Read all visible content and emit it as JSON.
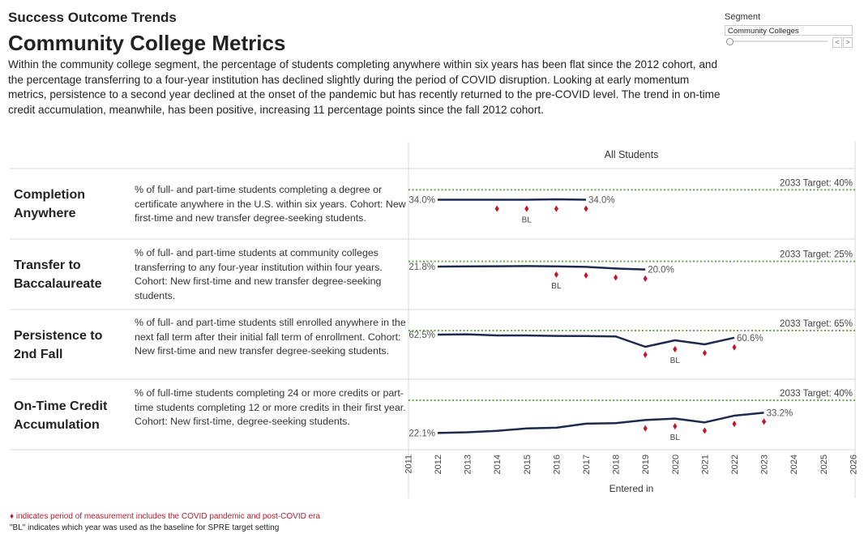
{
  "header": {
    "eyebrow": "Success Outcome Trends",
    "title": "Community College Metrics",
    "intro": "Within the community college segment, the percentage of students completing anywhere within six years has been flat since the 2012 cohort, and the percentage transferring to a four-year institution has declined slightly during the period of COVID disruption. Looking at early momentum metrics, persistence to a second year declined at the onset of the pandemic but has recently returned to the pre-COVID level. The trend in on-time credit accumulation, meanwhile, has been positive, increasing 11 percentage points since the fall 2012 cohort."
  },
  "segment": {
    "label": "Segment",
    "value": "Community Colleges",
    "prev_icon": "chevron-left-icon",
    "next_icon": "chevron-right-icon",
    "prev_glyph": "<",
    "next_glyph": ">"
  },
  "colors": {
    "line": "#1b2a4e",
    "covid": "#c0182a",
    "target": "#6aa84f",
    "grid": "#d9d9d9"
  },
  "chart_data": {
    "type": "line",
    "column_header": "All Students",
    "xlabel": "Entered in",
    "x_ticks": [
      2011,
      2012,
      2013,
      2014,
      2015,
      2016,
      2017,
      2018,
      2019,
      2020,
      2021,
      2022,
      2023,
      2024,
      2025,
      2026
    ],
    "baseline_label": "BL",
    "panels": [
      {
        "name": "Completion Anywhere",
        "description": "% of full- and part-time students completing a degree or certificate anywhere in the U.S. within six years. Cohort: New first-time and new transfer degree-seeking students.",
        "target_label": "2033 Target: 40%",
        "target": 40,
        "ylim": [
          10,
          53
        ],
        "x": [
          2012,
          2013,
          2014,
          2015,
          2016,
          2017
        ],
        "values": [
          34.0,
          34.0,
          34.0,
          34.0,
          34.2,
          34.0
        ],
        "first_label": "34.0%",
        "last_label": "34.0%",
        "covid_years": [
          2014,
          2015,
          2016,
          2017
        ],
        "covid_values": [
          28.5,
          28.5,
          28.5,
          28.5
        ],
        "baseline_year": 2015
      },
      {
        "name": "Transfer to Baccalaureate",
        "description": "% of full- and part-time students at community colleges transferring to any four-year institution within four years. Cohort: New first-time and new transfer degree-seeking students.",
        "target_label": "2033 Target: 25%",
        "target": 25,
        "ylim": [
          -5,
          39
        ],
        "x": [
          2012,
          2013,
          2014,
          2015,
          2016,
          2017,
          2018,
          2019
        ],
        "values": [
          21.8,
          21.9,
          22.0,
          22.1,
          21.9,
          21.6,
          20.6,
          20.0
        ],
        "first_label": "21.8%",
        "last_label": "20.0%",
        "covid_years": [
          2016,
          2017,
          2018,
          2019
        ],
        "covid_values": [
          16.8,
          16.3,
          15.0,
          14.3
        ],
        "baseline_year": 2016
      },
      {
        "name": "Persistence to 2nd Fall",
        "description": "% of full- and part-time students still enrolled anywhere in the next fall term after their initial fall term of enrollment. Cohort: New first-time and new transfer degree-seeking students.",
        "target_label": "2033 Target: 65%",
        "target": 65,
        "ylim": [
          35,
          78
        ],
        "x": [
          2012,
          2013,
          2014,
          2015,
          2016,
          2017,
          2018,
          2019,
          2020,
          2021,
          2022
        ],
        "values": [
          62.5,
          62.7,
          62.0,
          62.0,
          61.7,
          61.6,
          61.4,
          55.0,
          59.0,
          56.5,
          60.6
        ],
        "first_label": "62.5%",
        "last_label": "60.6%",
        "covid_years": [
          2019,
          2020,
          2021,
          2022
        ],
        "covid_values": [
          50.1,
          53.5,
          51.2,
          54.7
        ],
        "baseline_year": 2020
      },
      {
        "name": "On-Time Credit Accumulation",
        "description": "% of full-time students completing 24 or more credits or part-time students completing 12 or more credits in their first year. Cohort: New first-time, degree-seeking students.",
        "target_label": "2033 Target: 40%",
        "target": 40,
        "ylim": [
          13,
          51.5
        ],
        "x": [
          2012,
          2013,
          2014,
          2015,
          2016,
          2017,
          2018,
          2019,
          2020,
          2021,
          2022,
          2023
        ],
        "values": [
          22.1,
          22.5,
          23.3,
          24.6,
          25.0,
          27.2,
          27.5,
          29.2,
          30.0,
          27.9,
          31.6,
          33.2
        ],
        "first_label": "22.1%",
        "last_label": "33.2%",
        "covid_years": [
          2019,
          2020,
          2021,
          2022,
          2023
        ],
        "covid_values": [
          24.6,
          25.8,
          23.4,
          27.1,
          28.3
        ],
        "baseline_year": 2020
      }
    ]
  },
  "row_labels": [
    [
      "Completion",
      "Anywhere"
    ],
    [
      "Transfer to",
      "Baccalaureate"
    ],
    [
      "Persistence to",
      "2nd Fall"
    ],
    [
      "On-Time Credit",
      "Accumulation"
    ]
  ],
  "footnotes": {
    "covid": "♦ indicates period of measurement includes the COVID pandemic and post-COVID era",
    "baseline": "\"BL\" indicates which year was used as the baseline for SPRE target setting"
  }
}
